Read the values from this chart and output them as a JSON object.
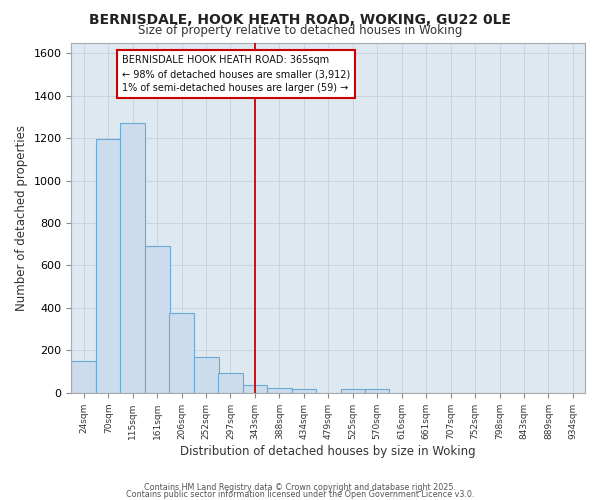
{
  "title1": "BERNISDALE, HOOK HEATH ROAD, WOKING, GU22 0LE",
  "title2": "Size of property relative to detached houses in Woking",
  "xlabel": "Distribution of detached houses by size in Woking",
  "ylabel": "Number of detached properties",
  "bin_labels": [
    "24sqm",
    "70sqm",
    "115sqm",
    "161sqm",
    "206sqm",
    "252sqm",
    "297sqm",
    "343sqm",
    "388sqm",
    "434sqm",
    "479sqm",
    "525sqm",
    "570sqm",
    "616sqm",
    "661sqm",
    "707sqm",
    "752sqm",
    "798sqm",
    "843sqm",
    "889sqm",
    "934sqm"
  ],
  "bin_edges": [
    24,
    70,
    115,
    161,
    206,
    252,
    297,
    343,
    388,
    434,
    479,
    525,
    570,
    616,
    661,
    707,
    752,
    798,
    843,
    889,
    934
  ],
  "bar_values": [
    150,
    1195,
    1270,
    690,
    378,
    170,
    95,
    35,
    25,
    20,
    0,
    20,
    20,
    0,
    0,
    0,
    0,
    0,
    0,
    0
  ],
  "bar_color": "#ccdcec",
  "bar_edge_color": "#6aaad4",
  "grid_color": "#c8d4e0",
  "plot_bg_color": "#dde8f0",
  "fig_bg_color": "#ffffff",
  "vline_x": 365,
  "vline_color": "#cc0000",
  "annotation_text": "BERNISDALE HOOK HEATH ROAD: 365sqm\n← 98% of detached houses are smaller (3,912)\n1% of semi-detached houses are larger (59) →",
  "annotation_box_facecolor": "#ffffff",
  "annotation_border_color": "#cc0000",
  "ylim": [
    0,
    1650
  ],
  "yticks": [
    0,
    200,
    400,
    600,
    800,
    1000,
    1200,
    1400,
    1600
  ],
  "footer1": "Contains HM Land Registry data © Crown copyright and database right 2025.",
  "footer2": "Contains public sector information licensed under the Open Government Licence v3.0."
}
